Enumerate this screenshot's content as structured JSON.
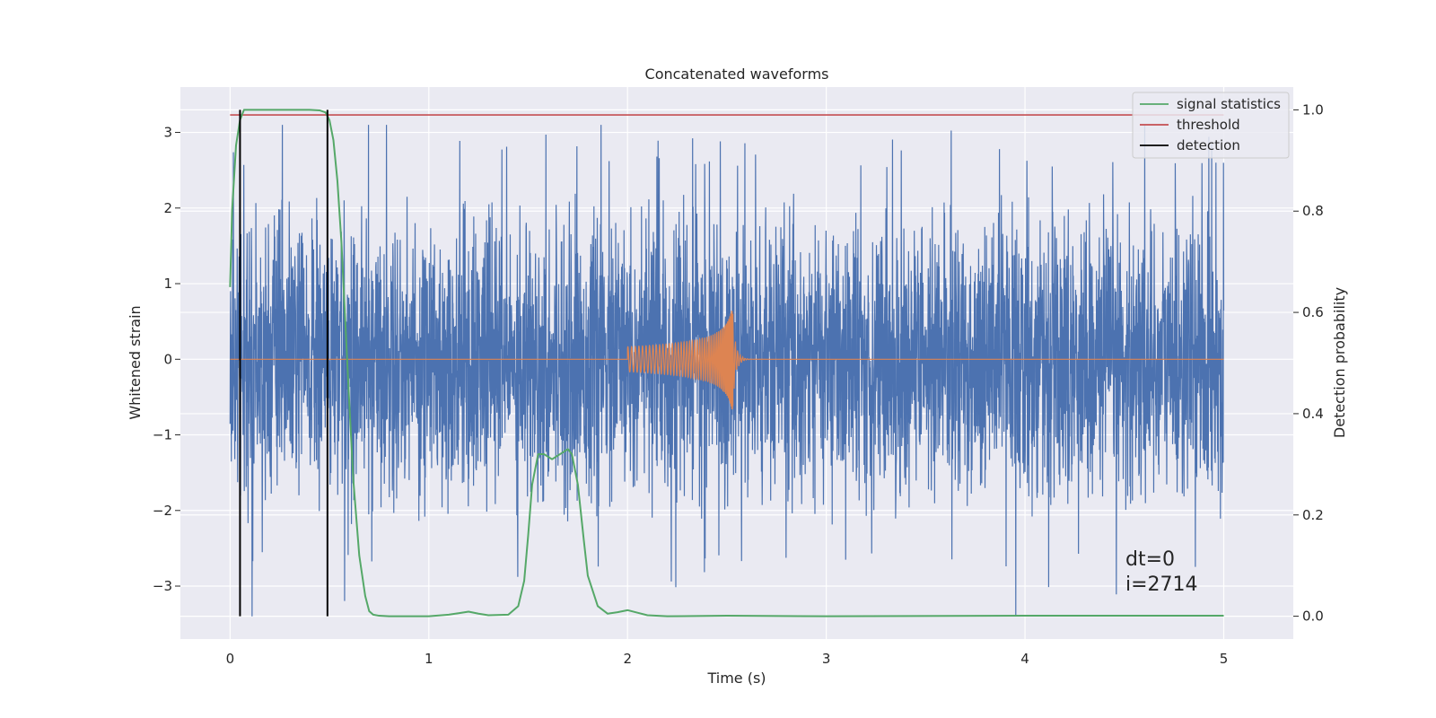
{
  "chart_data": {
    "type": "line",
    "title": "Concatenated waveforms",
    "xlabel": "Time (s)",
    "ylabel": "Whitened strain",
    "ylabel_right": "Detection probability",
    "xlim": [
      -0.25,
      5.35
    ],
    "ylim": [
      -3.7,
      3.6
    ],
    "ylim_right": [
      -0.045,
      1.045
    ],
    "x_ticks": [
      "0",
      "1",
      "2",
      "3",
      "4",
      "5"
    ],
    "x_tick_values": [
      0,
      1,
      2,
      3,
      4,
      5
    ],
    "y_ticks": [
      "3",
      "2",
      "1",
      "0",
      "−1",
      "−2",
      "−3"
    ],
    "y_tick_values": [
      3,
      2,
      1,
      0,
      -1,
      -2,
      -3
    ],
    "y_right_ticks": [
      "1.0",
      "0.8",
      "0.6",
      "0.4",
      "0.2",
      "0.0"
    ],
    "y_right_tick_values": [
      1.0,
      0.8,
      0.6,
      0.4,
      0.2,
      0.0
    ],
    "grid": true,
    "legend_position": "top-right",
    "series": [
      {
        "name": "",
        "kind": "noise-strain",
        "axis": "left",
        "color": "#4c72b0",
        "x_range": [
          0,
          5
        ],
        "approx_range": [
          -3.4,
          3.1
        ]
      },
      {
        "name": "",
        "kind": "injected-chirp",
        "axis": "left",
        "color": "#dd8452",
        "x_range": [
          0,
          5
        ],
        "chirp_start": 2.0,
        "chirp_peak": 2.53,
        "peak_amplitude": 0.75
      },
      {
        "name": "signal statistics",
        "axis": "right",
        "color": "#55a868",
        "x": [
          0.0,
          0.01,
          0.03,
          0.05,
          0.07,
          0.1,
          0.2,
          0.3,
          0.4,
          0.45,
          0.48,
          0.5,
          0.52,
          0.54,
          0.56,
          0.58,
          0.6,
          0.62,
          0.65,
          0.68,
          0.7,
          0.72,
          0.75,
          0.8,
          0.9,
          1.0,
          1.1,
          1.15,
          1.2,
          1.25,
          1.3,
          1.4,
          1.45,
          1.48,
          1.5,
          1.52,
          1.55,
          1.58,
          1.62,
          1.66,
          1.7,
          1.72,
          1.75,
          1.78,
          1.8,
          1.85,
          1.9,
          1.95,
          2.0,
          2.05,
          2.1,
          2.2,
          2.5,
          3.0,
          4.0,
          5.0
        ],
        "values": [
          0.65,
          0.8,
          0.93,
          0.98,
          1.0,
          1.0,
          1.0,
          1.0,
          1.0,
          0.999,
          0.995,
          0.98,
          0.94,
          0.86,
          0.74,
          0.58,
          0.42,
          0.27,
          0.12,
          0.04,
          0.01,
          0.003,
          0.001,
          0.0,
          0.0,
          0.0,
          0.003,
          0.006,
          0.009,
          0.005,
          0.002,
          0.003,
          0.02,
          0.07,
          0.16,
          0.26,
          0.32,
          0.32,
          0.31,
          0.32,
          0.33,
          0.32,
          0.26,
          0.15,
          0.08,
          0.02,
          0.005,
          0.008,
          0.012,
          0.007,
          0.002,
          0.0,
          0.001,
          0.0,
          0.001,
          0.001
        ]
      },
      {
        "name": "threshold",
        "axis": "right",
        "color": "#c44e52",
        "x": [
          0.0,
          5.0
        ],
        "values": [
          0.99,
          0.99
        ]
      },
      {
        "name": "detection",
        "axis": "right",
        "color": "#000000",
        "x": [
          0.05,
          0.49
        ],
        "values_from": 0.0,
        "values_to": 1.0
      }
    ],
    "annotations": [
      "dt=0",
      "i=2714"
    ]
  },
  "colors": {
    "plot_background": "#eaeaf2",
    "grid": "#ffffff",
    "text": "#262626"
  }
}
